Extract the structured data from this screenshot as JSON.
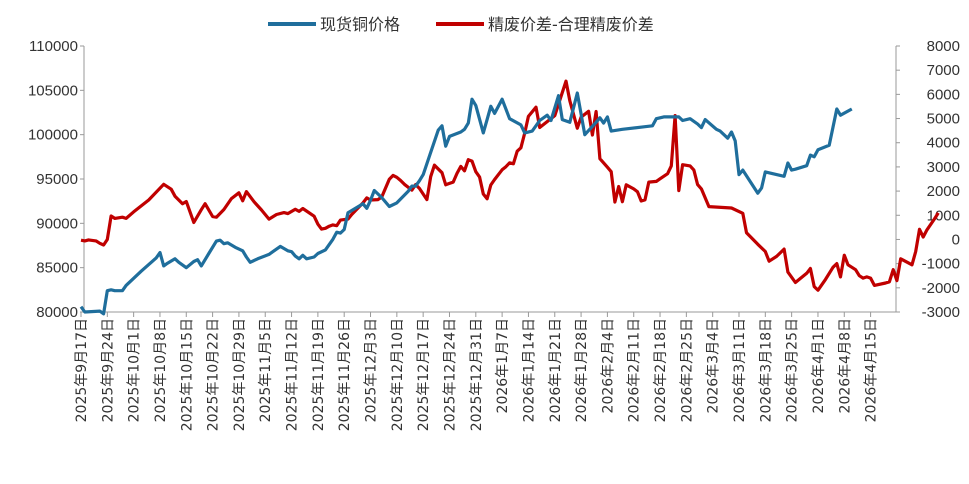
{
  "chart_data": {
    "type": "line",
    "title": "",
    "legend_position": "top-center",
    "series": [
      {
        "name": "现货铜价格",
        "axis": "left",
        "color": "#1f6e9c"
      },
      {
        "name": "精废价差-合理精废价差",
        "axis": "right",
        "color": "#c00000"
      }
    ],
    "left_axis": {
      "min": 80000,
      "max": 110000,
      "step": 5000,
      "tick_labels": [
        "80000",
        "85000",
        "90000",
        "95000",
        "100000",
        "105000",
        "110000"
      ]
    },
    "right_axis": {
      "min": -3000,
      "max": 8000,
      "step": 1000,
      "tick_labels": [
        "-3000",
        "-2000",
        "-1000",
        "0",
        "1000",
        "2000",
        "3000",
        "4000",
        "5000",
        "6000",
        "7000",
        "8000"
      ]
    },
    "x_range_days": [
      0,
      214
    ],
    "x_tick_days": [
      0,
      7,
      14,
      21,
      28,
      35,
      42,
      49,
      56,
      63,
      70,
      77,
      84,
      91,
      98,
      105,
      112,
      119,
      126,
      133,
      140,
      147,
      154,
      161,
      168,
      175,
      182,
      189,
      196,
      203,
      210
    ],
    "x_tick_labels": [
      "2025年9月17日",
      "2025年9月24日",
      "2025年10月1日",
      "2025年10月8日",
      "2025年10月15日",
      "2025年10月22日",
      "2025年10月29日",
      "2025年11月5日",
      "2025年11月12日",
      "2025年11月19日",
      "2025年11月26日",
      "2025年12月3日",
      "2025年12月10日",
      "2025年12月17日",
      "2025年12月24日",
      "2025年12月31日",
      "2026年1月7日",
      "2026年1月14日",
      "2026年1月21日",
      "2026年1月28日",
      "2026年2月4日",
      "2026年2月11日",
      "2026年2月18日",
      "2026年2月25日",
      "2026年3月4日",
      "2026年3月11日",
      "2026年3月18日",
      "2026年3月25日",
      "2026年4月1日",
      "2026年4月8日",
      "2026年4月15日"
    ],
    "copper_price": [
      [
        0,
        80600
      ],
      [
        1,
        80000
      ],
      [
        5,
        80100
      ],
      [
        6,
        79800
      ],
      [
        7,
        82400
      ],
      [
        8,
        82500
      ],
      [
        9,
        82400
      ],
      [
        11,
        82400
      ],
      [
        12,
        83000
      ],
      [
        16,
        84600
      ],
      [
        20,
        86100
      ],
      [
        21,
        86700
      ],
      [
        22,
        85200
      ],
      [
        23,
        85500
      ],
      [
        25,
        86000
      ],
      [
        26,
        85600
      ],
      [
        28,
        85000
      ],
      [
        30,
        85700
      ],
      [
        31,
        85900
      ],
      [
        32,
        85200
      ],
      [
        34,
        86600
      ],
      [
        36,
        88000
      ],
      [
        37,
        88100
      ],
      [
        38,
        87700
      ],
      [
        39,
        87800
      ],
      [
        41,
        87300
      ],
      [
        43,
        86900
      ],
      [
        44,
        86200
      ],
      [
        45,
        85600
      ],
      [
        47,
        86000
      ],
      [
        50,
        86500
      ],
      [
        51,
        86800
      ],
      [
        53,
        87400
      ],
      [
        55,
        86900
      ],
      [
        56,
        86800
      ],
      [
        57,
        86300
      ],
      [
        58,
        86000
      ],
      [
        59,
        86400
      ],
      [
        60,
        86000
      ],
      [
        62,
        86200
      ],
      [
        63,
        86600
      ],
      [
        65,
        87000
      ],
      [
        67,
        88200
      ],
      [
        68,
        89000
      ],
      [
        69,
        88900
      ],
      [
        70,
        89300
      ],
      [
        71,
        91200
      ],
      [
        73,
        91700
      ],
      [
        75,
        92200
      ],
      [
        76,
        91700
      ],
      [
        77,
        92600
      ],
      [
        78,
        93700
      ],
      [
        80,
        92900
      ],
      [
        82,
        91900
      ],
      [
        84,
        92300
      ],
      [
        87,
        93600
      ],
      [
        88,
        94200
      ],
      [
        89,
        94200
      ],
      [
        90,
        94800
      ],
      [
        91,
        95500
      ],
      [
        93,
        98000
      ],
      [
        95,
        100500
      ],
      [
        96,
        101000
      ],
      [
        97,
        98700
      ],
      [
        98,
        99800
      ],
      [
        101,
        100300
      ],
      [
        102,
        100600
      ],
      [
        103,
        101300
      ],
      [
        104,
        104000
      ],
      [
        105,
        103300
      ],
      [
        107,
        100200
      ],
      [
        108,
        101700
      ],
      [
        109,
        103200
      ],
      [
        110,
        102400
      ],
      [
        112,
        104000
      ],
      [
        114,
        101800
      ],
      [
        117,
        101100
      ],
      [
        118,
        100200
      ],
      [
        120,
        100400
      ],
      [
        122,
        101600
      ],
      [
        124,
        102200
      ],
      [
        125,
        101600
      ],
      [
        127,
        104400
      ],
      [
        128,
        101700
      ],
      [
        130,
        101400
      ],
      [
        132,
        104700
      ],
      [
        134,
        100000
      ],
      [
        137,
        101400
      ],
      [
        138,
        101900
      ],
      [
        139,
        101300
      ],
      [
        140,
        102000
      ],
      [
        141,
        100400
      ],
      [
        144,
        100600
      ],
      [
        150,
        100900
      ],
      [
        152,
        101000
      ],
      [
        153,
        101800
      ],
      [
        155,
        102000
      ],
      [
        159,
        102000
      ],
      [
        160,
        101600
      ],
      [
        162,
        101800
      ],
      [
        164,
        101200
      ],
      [
        165,
        100800
      ],
      [
        166,
        101700
      ],
      [
        169,
        100600
      ],
      [
        170,
        100400
      ],
      [
        172,
        99600
      ],
      [
        173,
        100300
      ],
      [
        174,
        99300
      ],
      [
        175,
        95500
      ],
      [
        176,
        96000
      ],
      [
        180,
        93400
      ],
      [
        181,
        94000
      ],
      [
        182,
        95800
      ],
      [
        184,
        95600
      ],
      [
        187,
        95300
      ],
      [
        188,
        96800
      ],
      [
        189,
        96000
      ],
      [
        190,
        96100
      ],
      [
        193,
        96500
      ],
      [
        194,
        97700
      ],
      [
        195,
        97500
      ],
      [
        196,
        98300
      ],
      [
        199,
        98800
      ],
      [
        201,
        102900
      ],
      [
        202,
        102200
      ],
      [
        205,
        102900
      ]
    ],
    "spread": [
      [
        0,
        -30
      ],
      [
        1,
        -60
      ],
      [
        2,
        -20
      ],
      [
        4,
        -60
      ],
      [
        5,
        -160
      ],
      [
        6,
        -230
      ],
      [
        7,
        0
      ],
      [
        8,
        970
      ],
      [
        9,
        870
      ],
      [
        11,
        920
      ],
      [
        12,
        870
      ],
      [
        14,
        1140
      ],
      [
        18,
        1630
      ],
      [
        22,
        2280
      ],
      [
        24,
        2080
      ],
      [
        25,
        1790
      ],
      [
        27,
        1480
      ],
      [
        28,
        1570
      ],
      [
        30,
        700
      ],
      [
        32,
        1230
      ],
      [
        33,
        1480
      ],
      [
        35,
        950
      ],
      [
        36,
        920
      ],
      [
        38,
        1240
      ],
      [
        40,
        1690
      ],
      [
        42,
        1930
      ],
      [
        43,
        1600
      ],
      [
        44,
        1980
      ],
      [
        46,
        1560
      ],
      [
        48,
        1220
      ],
      [
        50,
        840
      ],
      [
        52,
        1030
      ],
      [
        54,
        1110
      ],
      [
        55,
        1070
      ],
      [
        57,
        1250
      ],
      [
        58,
        1160
      ],
      [
        59,
        1280
      ],
      [
        62,
        960
      ],
      [
        63,
        630
      ],
      [
        64,
        430
      ],
      [
        65,
        460
      ],
      [
        66,
        550
      ],
      [
        67,
        600
      ],
      [
        68,
        570
      ],
      [
        69,
        800
      ],
      [
        71,
        840
      ],
      [
        72,
        1030
      ],
      [
        74,
        1350
      ],
      [
        75,
        1510
      ],
      [
        76,
        1720
      ],
      [
        77,
        1630
      ],
      [
        79,
        1650
      ],
      [
        80,
        1760
      ],
      [
        82,
        2490
      ],
      [
        83,
        2650
      ],
      [
        84,
        2570
      ],
      [
        85,
        2440
      ],
      [
        86,
        2280
      ],
      [
        88,
        2040
      ],
      [
        89,
        2270
      ],
      [
        90,
        2110
      ],
      [
        92,
        1650
      ],
      [
        93,
        2600
      ],
      [
        94,
        3070
      ],
      [
        96,
        2760
      ],
      [
        97,
        2260
      ],
      [
        98,
        2320
      ],
      [
        99,
        2370
      ],
      [
        100,
        2730
      ],
      [
        101,
        3020
      ],
      [
        102,
        2840
      ],
      [
        103,
        3300
      ],
      [
        104,
        3240
      ],
      [
        105,
        2800
      ],
      [
        106,
        2580
      ],
      [
        107,
        1880
      ],
      [
        108,
        1680
      ],
      [
        109,
        2250
      ],
      [
        110,
        2480
      ],
      [
        112,
        2880
      ],
      [
        113,
        3010
      ],
      [
        114,
        3170
      ],
      [
        115,
        3130
      ],
      [
        116,
        3650
      ],
      [
        117,
        3790
      ],
      [
        118,
        4400
      ],
      [
        119,
        5090
      ],
      [
        121,
        5470
      ],
      [
        122,
        4630
      ],
      [
        126,
        5120
      ],
      [
        129,
        6550
      ],
      [
        130,
        5740
      ],
      [
        132,
        4600
      ],
      [
        133,
        5060
      ],
      [
        135,
        5300
      ],
      [
        136,
        4320
      ],
      [
        137,
        5290
      ],
      [
        138,
        3340
      ],
      [
        140,
        2990
      ],
      [
        141,
        2800
      ],
      [
        142,
        1550
      ],
      [
        143,
        2190
      ],
      [
        144,
        1560
      ],
      [
        145,
        2260
      ],
      [
        147,
        2090
      ],
      [
        148,
        1970
      ],
      [
        149,
        1590
      ],
      [
        150,
        1640
      ],
      [
        151,
        2370
      ],
      [
        153,
        2400
      ],
      [
        154,
        2510
      ],
      [
        156,
        2720
      ],
      [
        157,
        3040
      ],
      [
        158,
        5120
      ],
      [
        159,
        2020
      ],
      [
        160,
        3090
      ],
      [
        162,
        3040
      ],
      [
        163,
        2870
      ],
      [
        164,
        2270
      ],
      [
        165,
        2090
      ],
      [
        167,
        1360
      ],
      [
        173,
        1300
      ],
      [
        176,
        1080
      ],
      [
        177,
        280
      ],
      [
        180,
        -200
      ],
      [
        182,
        -500
      ],
      [
        183,
        -900
      ],
      [
        185,
        -700
      ],
      [
        187,
        -400
      ],
      [
        188,
        -1350
      ],
      [
        190,
        -1780
      ],
      [
        193,
        -1400
      ],
      [
        194,
        -1200
      ],
      [
        195,
        -1950
      ],
      [
        196,
        -2100
      ],
      [
        198,
        -1650
      ],
      [
        200,
        -1150
      ],
      [
        201,
        -1000
      ],
      [
        202,
        -1550
      ],
      [
        203,
        -650
      ],
      [
        204,
        -1050
      ],
      [
        206,
        -1250
      ],
      [
        207,
        -1500
      ],
      [
        208,
        -1600
      ],
      [
        209,
        -1550
      ],
      [
        210,
        -1600
      ],
      [
        211,
        -1900
      ],
      [
        214,
        -1800
      ],
      [
        215,
        -1750
      ],
      [
        216,
        -1250
      ],
      [
        217,
        -1700
      ],
      [
        218,
        -800
      ],
      [
        221,
        -1050
      ],
      [
        222,
        -500
      ],
      [
        223,
        420
      ],
      [
        224,
        100
      ],
      [
        225,
        400
      ],
      [
        227,
        850
      ],
      [
        228,
        1100
      ]
    ]
  }
}
